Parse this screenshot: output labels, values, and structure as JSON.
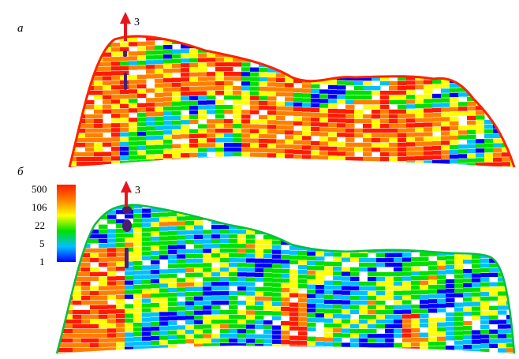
{
  "panels": [
    {
      "label": "а",
      "well_label": "3",
      "mode": "upper"
    },
    {
      "label": "б",
      "well_label": "3",
      "mode": "lower"
    }
  ],
  "colorbar": {
    "ticks": [
      "500",
      "106",
      "22",
      "5",
      "1"
    ],
    "colors": [
      "#ff1a00",
      "#ff8000",
      "#ffff00",
      "#00e000",
      "#00c0ff",
      "#0000ff"
    ]
  },
  "colors": {
    "arrow": "#e8141c",
    "perforation": "#4b1f6e",
    "background": "#ffffff"
  }
}
